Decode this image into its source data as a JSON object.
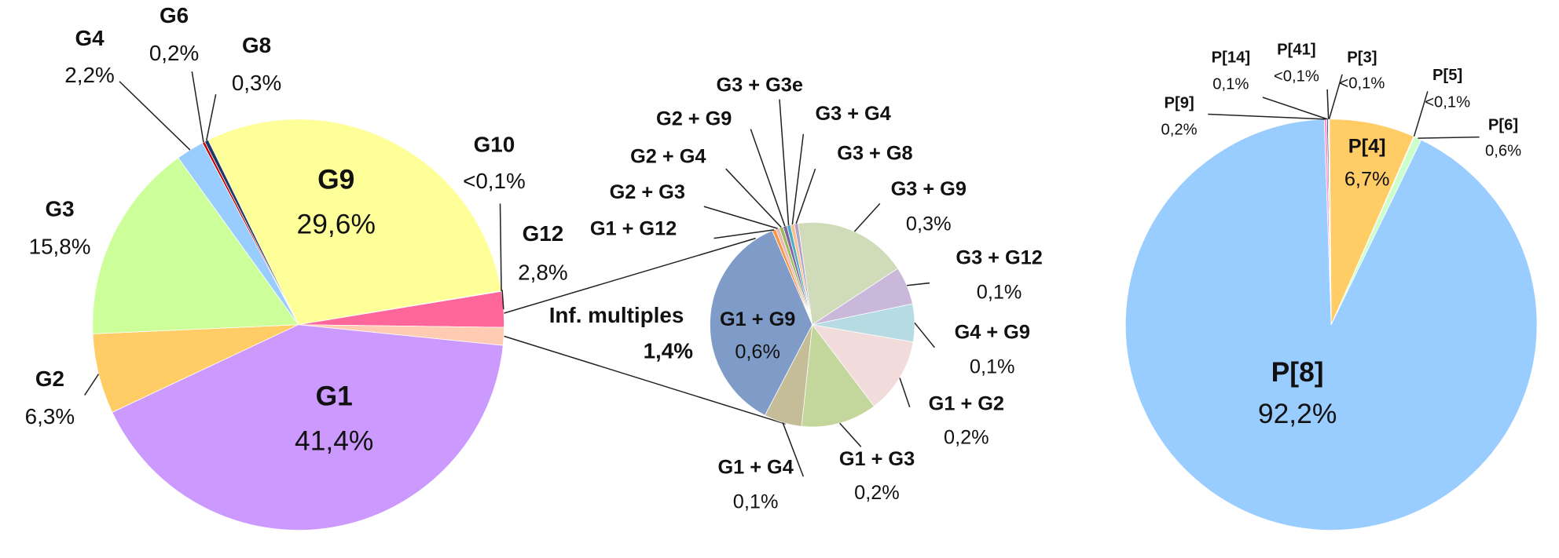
{
  "chart_data": [
    {
      "type": "pie",
      "categories": [
        "G9",
        "G10",
        "G12",
        "Inf. multiples",
        "G1",
        "G2",
        "G3",
        "G4",
        "G6",
        "G8"
      ],
      "values": [
        29.6,
        0.05,
        2.8,
        1.4,
        41.4,
        6.3,
        15.8,
        2.2,
        0.2,
        0.3
      ],
      "value_labels": [
        "29,6%",
        "<0,1%",
        "2,8%",
        "1,4%",
        "41,4%",
        "6,3%",
        "15,8%",
        "2,2%",
        "0,2%",
        "0,3%"
      ],
      "colors": [
        "#ffff99",
        "#ff9999",
        "#ff6699",
        "#ffccb3",
        "#cc99ff",
        "#ffcc66",
        "#ccff99",
        "#99ccff",
        "#c00000",
        "#1f3864"
      ]
    },
    {
      "type": "pie",
      "categories": [
        "G3 + G9",
        "G3 + G12",
        "G4 + G9",
        "G1 + G2",
        "G1 + G3",
        "G1 + G4",
        "G1 + G9",
        "G1 + G12",
        "G2 + G3",
        "G2 + G4",
        "G2 + G9",
        "G3 + G3e",
        "G3 + G4",
        "G3 + G8"
      ],
      "values": [
        0.3,
        0.1,
        0.1,
        0.2,
        0.2,
        0.1,
        0.6,
        0.01,
        0.01,
        0.01,
        0.01,
        0.01,
        0.01,
        0.01
      ],
      "value_labels": [
        "0,3%",
        "0,1%",
        "0,1%",
        "0,2%",
        "0,2%",
        "0,1%",
        "0,6%",
        null,
        null,
        null,
        null,
        null,
        null,
        null
      ],
      "colors": [
        "#cfdbb9",
        "#c9b8d9",
        "#b7dbe3",
        "#f2dcdb",
        "#c3d69b",
        "#c4bd97",
        "#7f9cc9",
        "#f79646",
        "#e6b9b8",
        "#9bbb59",
        "#8064a2",
        "#4bacc6",
        "#fac090",
        "#b3a2c7"
      ]
    },
    {
      "type": "pie",
      "categories": [
        "P[4]",
        "P[5]",
        "P[6]",
        "P[8]",
        "P[9]",
        "P[14]",
        "P[41]",
        "P[3]"
      ],
      "values": [
        6.7,
        0.05,
        0.6,
        92.2,
        0.2,
        0.1,
        0.05,
        0.05
      ],
      "value_labels": [
        "6,7%",
        "<0,1%",
        "0,6%",
        "92,2%",
        "0,2%",
        "0,1%",
        "<0,1%",
        "<0,1%"
      ],
      "colors": [
        "#ffcc66",
        "#ffff99",
        "#ccffcc",
        "#99ccff",
        "#ff99cc",
        "#1f3864",
        "#ccff99",
        "#cc99ff"
      ]
    }
  ]
}
